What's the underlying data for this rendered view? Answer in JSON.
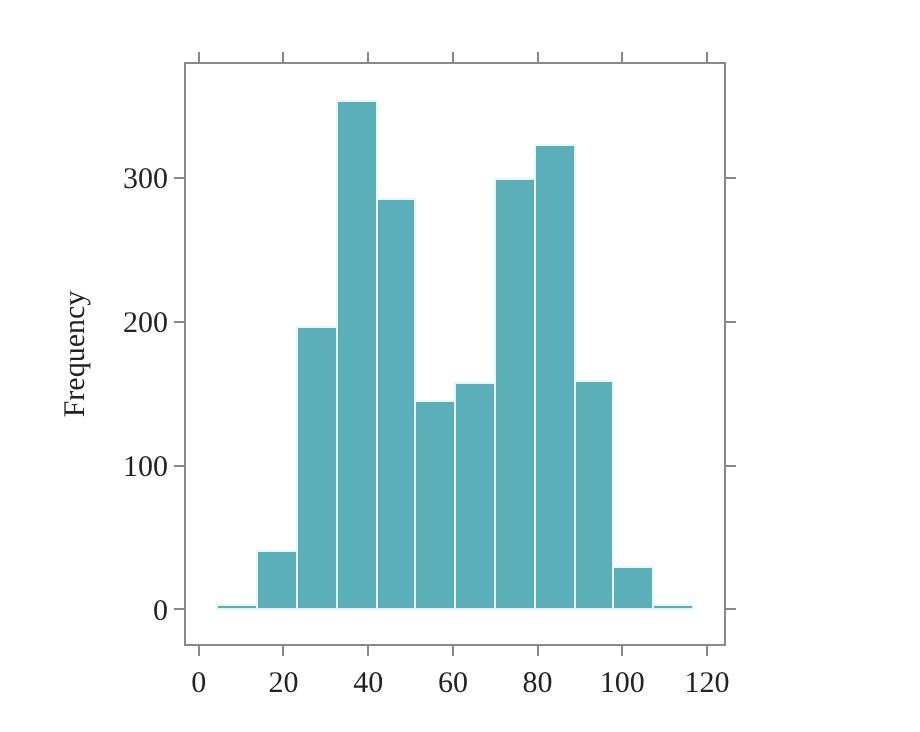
{
  "chart_data": {
    "type": "histogram",
    "ylabel": "Frequency",
    "bins": [
      4.7,
      14.05,
      23.4,
      32.75,
      42.1,
      51.45,
      60.8,
      70.15,
      79.5,
      88.85,
      98.2,
      107.55,
      116.9
    ],
    "values": [
      2,
      40,
      196,
      353,
      285,
      144,
      156,
      298,
      322,
      158,
      29,
      2
    ],
    "color": "#5aafb8",
    "xlim": [
      -3,
      124
    ],
    "xticks": [
      0,
      20,
      40,
      60,
      80,
      100,
      120
    ],
    "ylim": [
      -24,
      379
    ],
    "yticks": [
      0,
      100,
      200,
      300
    ]
  }
}
